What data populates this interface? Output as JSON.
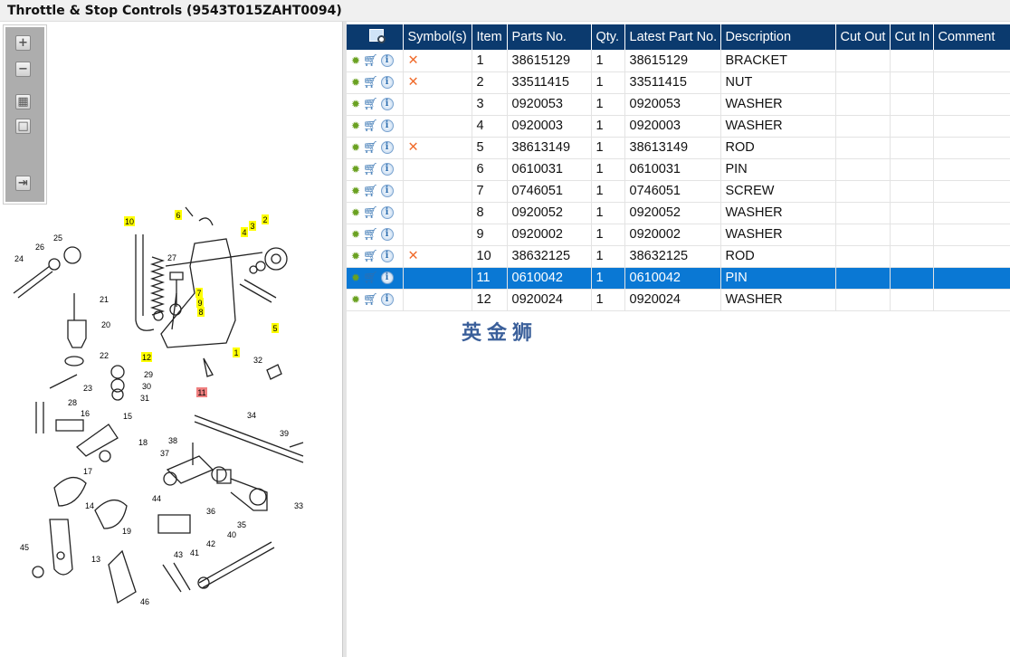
{
  "title": "Throttle & Stop Controls (9543T015ZAHT0094)",
  "toolbar": {
    "zoom_in": "+",
    "zoom_out": "−",
    "fit": "▦",
    "actual": "□",
    "export": "⇥"
  },
  "watermark": "英金狮",
  "colors": {
    "header": "#0b3a6e",
    "selected_row": "#0a78d4",
    "callout_highlight": "#ffff00",
    "callout_selected": "#f08080",
    "remove_mark": "#f06a2a"
  },
  "callouts": [
    {
      "label": "10",
      "hl": "y"
    },
    {
      "label": "6",
      "hl": "y"
    },
    {
      "label": "4",
      "hl": "y"
    },
    {
      "label": "3",
      "hl": "y"
    },
    {
      "label": "2",
      "hl": "y"
    },
    {
      "label": "27"
    },
    {
      "label": "7",
      "hl": "y"
    },
    {
      "label": "9",
      "hl": "y"
    },
    {
      "label": "8",
      "hl": "y"
    },
    {
      "label": "5",
      "hl": "y"
    },
    {
      "label": "12",
      "hl": "y"
    },
    {
      "label": "1",
      "hl": "y"
    },
    {
      "label": "11",
      "hl": "p"
    },
    {
      "label": "26"
    },
    {
      "label": "25"
    },
    {
      "label": "24"
    },
    {
      "label": "21"
    },
    {
      "label": "20"
    },
    {
      "label": "22"
    },
    {
      "label": "23"
    },
    {
      "label": "29"
    },
    {
      "label": "30"
    },
    {
      "label": "31"
    },
    {
      "label": "32"
    },
    {
      "label": "28"
    },
    {
      "label": "16"
    },
    {
      "label": "15"
    },
    {
      "label": "18"
    },
    {
      "label": "17"
    },
    {
      "label": "14"
    },
    {
      "label": "19"
    },
    {
      "label": "34"
    },
    {
      "label": "38"
    },
    {
      "label": "39"
    },
    {
      "label": "37"
    },
    {
      "label": "36"
    },
    {
      "label": "35"
    },
    {
      "label": "33"
    },
    {
      "label": "44"
    },
    {
      "label": "40"
    },
    {
      "label": "43"
    },
    {
      "label": "41"
    },
    {
      "label": "42"
    },
    {
      "label": "45"
    },
    {
      "label": "13"
    },
    {
      "label": "46"
    }
  ],
  "table": {
    "headers": [
      "",
      "Symbol(s)",
      "Item",
      "Parts No.",
      "Qty.",
      "Latest Part No.",
      "Description",
      "Cut Out",
      "Cut In",
      "Comment"
    ],
    "header_icon": "search-preview-icon",
    "row_icons": [
      "gear-icon",
      "cart-icon",
      "info-icon"
    ],
    "selected_item": "11",
    "rows": [
      {
        "symbol": "✕",
        "item": "1",
        "part": "38615129",
        "qty": "1",
        "latest": "38615129",
        "desc": "BRACKET",
        "cut_out": "",
        "cut_in": "",
        "comment": ""
      },
      {
        "symbol": "✕",
        "item": "2",
        "part": "33511415",
        "qty": "1",
        "latest": "33511415",
        "desc": "NUT",
        "cut_out": "",
        "cut_in": "",
        "comment": ""
      },
      {
        "symbol": "",
        "item": "3",
        "part": "0920053",
        "qty": "1",
        "latest": "0920053",
        "desc": "WASHER",
        "cut_out": "",
        "cut_in": "",
        "comment": ""
      },
      {
        "symbol": "",
        "item": "4",
        "part": "0920003",
        "qty": "1",
        "latest": "0920003",
        "desc": "WASHER",
        "cut_out": "",
        "cut_in": "",
        "comment": ""
      },
      {
        "symbol": "✕",
        "item": "5",
        "part": "38613149",
        "qty": "1",
        "latest": "38613149",
        "desc": "ROD",
        "cut_out": "",
        "cut_in": "",
        "comment": ""
      },
      {
        "symbol": "",
        "item": "6",
        "part": "0610031",
        "qty": "1",
        "latest": "0610031",
        "desc": "PIN",
        "cut_out": "",
        "cut_in": "",
        "comment": ""
      },
      {
        "symbol": "",
        "item": "7",
        "part": "0746051",
        "qty": "1",
        "latest": "0746051",
        "desc": "SCREW",
        "cut_out": "",
        "cut_in": "",
        "comment": ""
      },
      {
        "symbol": "",
        "item": "8",
        "part": "0920052",
        "qty": "1",
        "latest": "0920052",
        "desc": "WASHER",
        "cut_out": "",
        "cut_in": "",
        "comment": ""
      },
      {
        "symbol": "",
        "item": "9",
        "part": "0920002",
        "qty": "1",
        "latest": "0920002",
        "desc": "WASHER",
        "cut_out": "",
        "cut_in": "",
        "comment": ""
      },
      {
        "symbol": "✕",
        "item": "10",
        "part": "38632125",
        "qty": "1",
        "latest": "38632125",
        "desc": "ROD",
        "cut_out": "",
        "cut_in": "",
        "comment": ""
      },
      {
        "symbol": "",
        "item": "11",
        "part": "0610042",
        "qty": "1",
        "latest": "0610042",
        "desc": "PIN",
        "cut_out": "",
        "cut_in": "",
        "comment": ""
      },
      {
        "symbol": "",
        "item": "12",
        "part": "0920024",
        "qty": "1",
        "latest": "0920024",
        "desc": "WASHER",
        "cut_out": "",
        "cut_in": "",
        "comment": ""
      }
    ]
  }
}
